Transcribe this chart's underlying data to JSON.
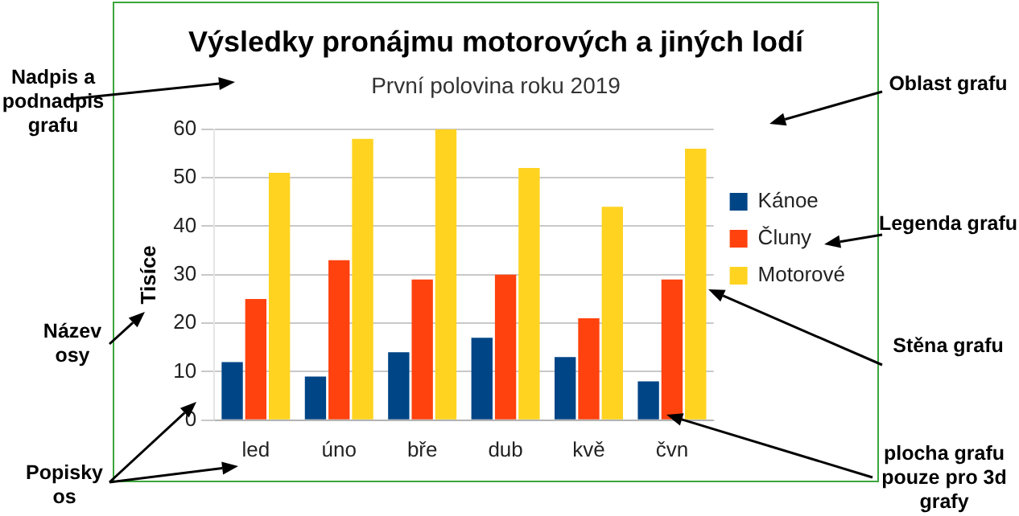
{
  "chart_data": {
    "type": "bar",
    "title": "Výsledky pronájmu motorových a jiných lodí",
    "subtitle": "První polovina roku 2019",
    "ylabel": "Tisíce",
    "categories": [
      "led",
      "úno",
      "bře",
      "dub",
      "kvě",
      "čvn"
    ],
    "series": [
      {
        "name": "Kánoe",
        "color": "#004586",
        "values": [
          12,
          9,
          14,
          17,
          13,
          8
        ]
      },
      {
        "name": "Čluny",
        "color": "#ff420e",
        "values": [
          25,
          33,
          29,
          30,
          21,
          29
        ]
      },
      {
        "name": "Motorové",
        "color": "#ffd320",
        "values": [
          51,
          58,
          60,
          52,
          44,
          56
        ]
      }
    ],
    "ylim": [
      0,
      60
    ],
    "yticks": [
      0,
      10,
      20,
      30,
      40,
      50,
      60
    ],
    "grid": "y",
    "legend": "right",
    "annotations": [
      "Nadpis a podnadpis grafu",
      "Oblast grafu",
      "Legenda grafu",
      "Název osy",
      "Stěna grafu",
      "Popisky os",
      "plocha grafu pouze pro 3d grafy"
    ]
  }
}
